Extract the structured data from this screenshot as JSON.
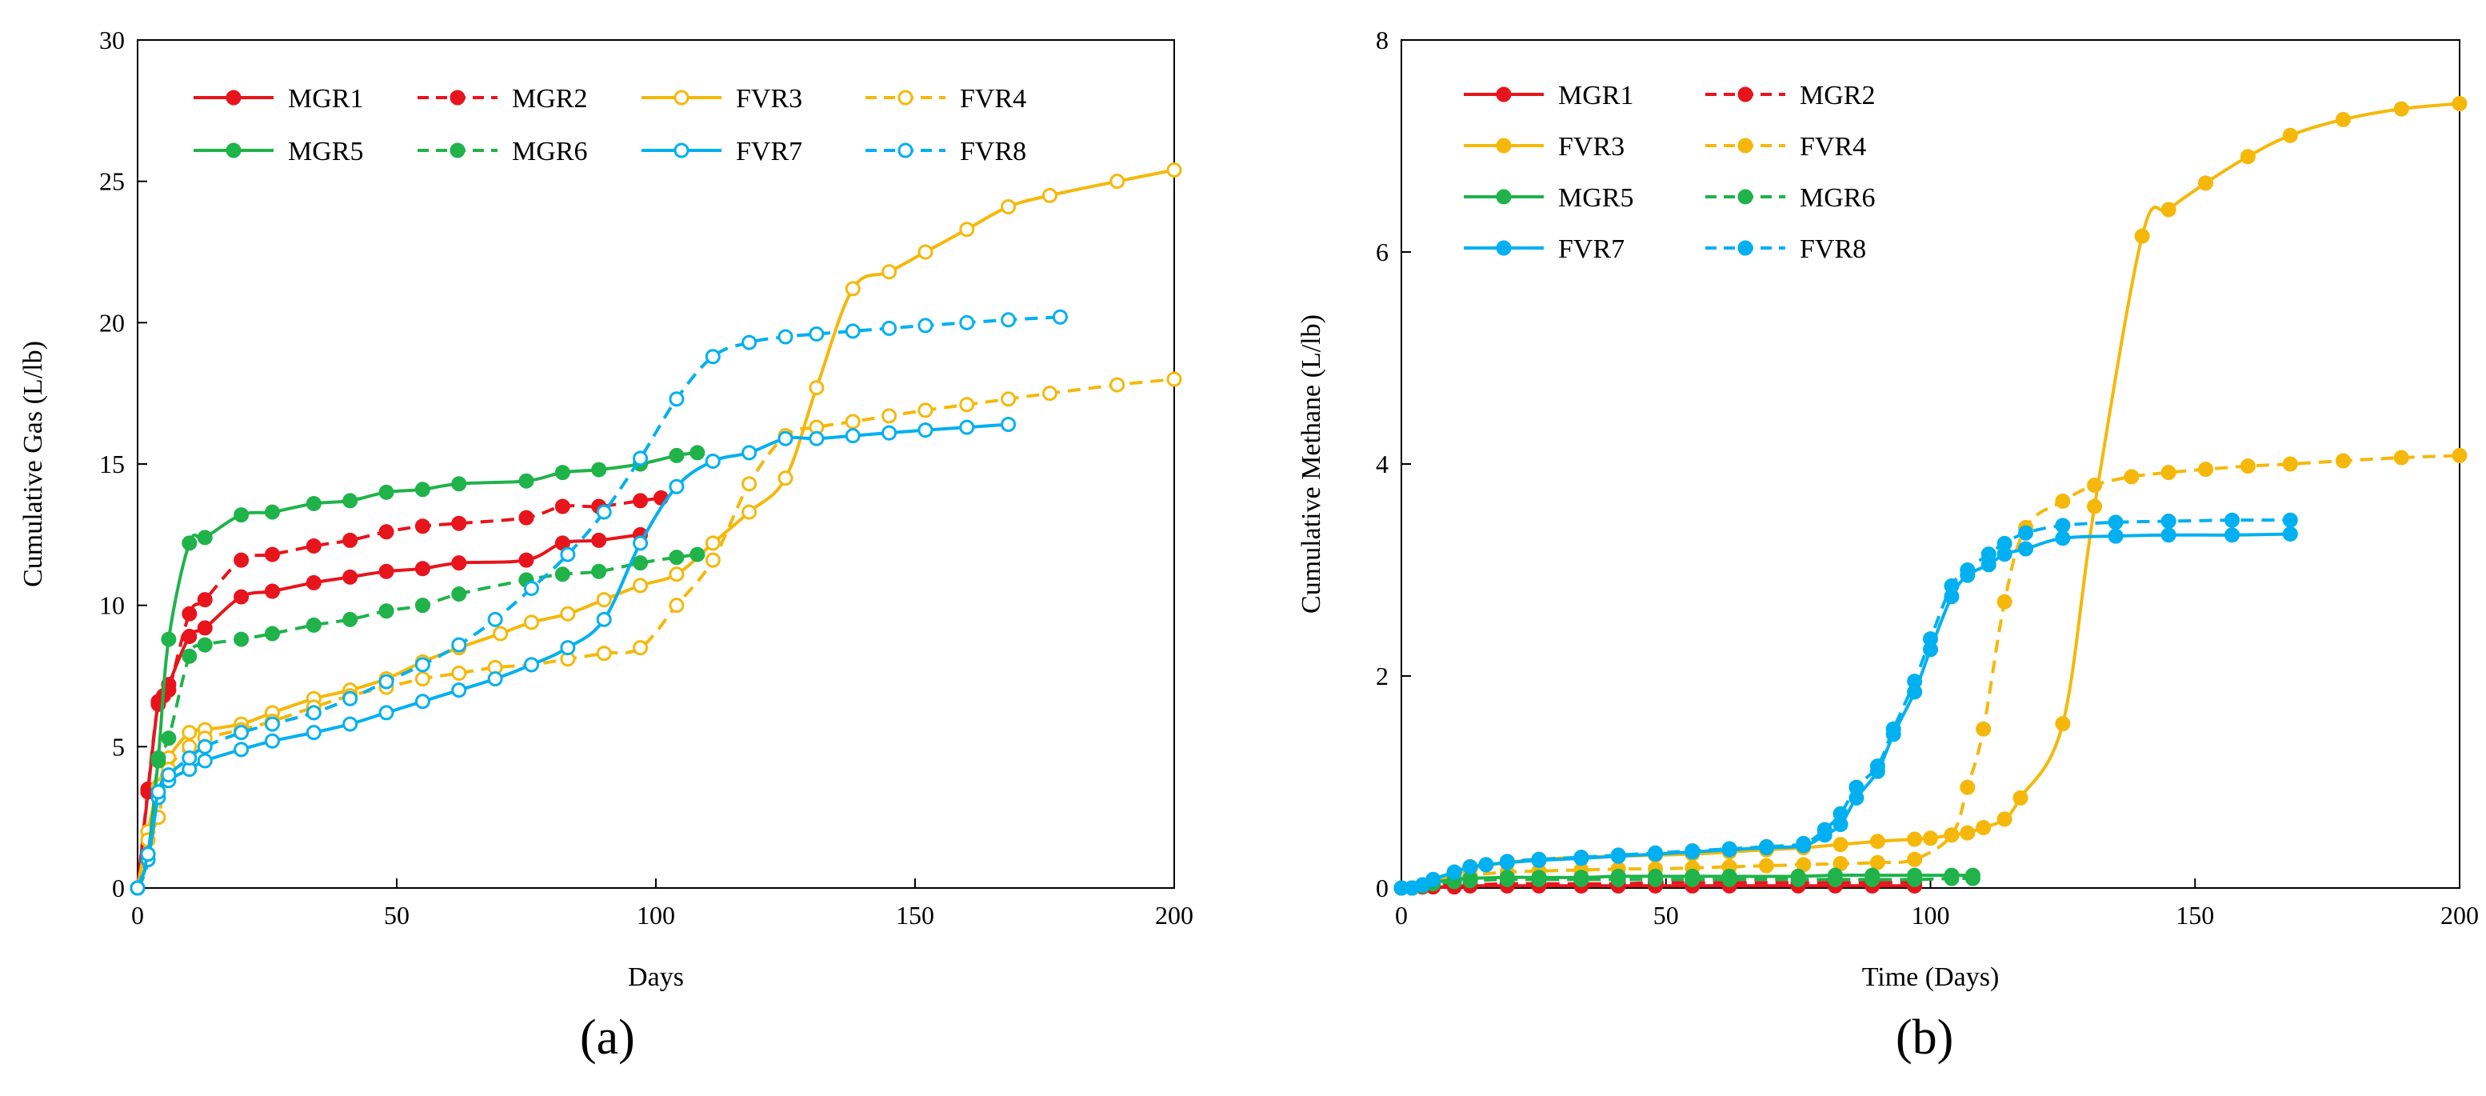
{
  "chart_data": [
    {
      "type": "line",
      "panel": "a",
      "caption": "(a)",
      "xlabel": "Days",
      "ylabel": "Cumulative Gas (L/lb)",
      "xlim": [
        0,
        200
      ],
      "ylim": [
        0,
        30
      ],
      "xticks": [
        0,
        50,
        100,
        150,
        200
      ],
      "yticks": [
        0,
        5,
        10,
        15,
        20,
        25,
        30
      ],
      "legend": {
        "columns": 4,
        "placement": "top-left"
      },
      "series": [
        {
          "name": "MGR1",
          "color": "#e8141c",
          "dashed": false,
          "marker": "filled",
          "x": [
            0,
            2,
            4,
            5,
            6,
            10,
            13,
            20,
            26,
            34,
            41,
            48,
            55,
            62,
            75,
            82,
            89,
            97
          ],
          "y": [
            0,
            3.4,
            6.6,
            6.8,
            7.2,
            8.9,
            9.2,
            10.3,
            10.5,
            10.8,
            11.0,
            11.2,
            11.3,
            11.5,
            11.6,
            12.2,
            12.3,
            12.5
          ]
        },
        {
          "name": "MGR2",
          "color": "#e8141c",
          "dashed": true,
          "marker": "filled",
          "x": [
            0,
            2,
            4,
            6,
            10,
            13,
            20,
            26,
            34,
            41,
            48,
            55,
            62,
            75,
            82,
            89,
            97,
            101
          ],
          "y": [
            0,
            3.5,
            6.5,
            7.0,
            9.7,
            10.2,
            11.6,
            11.8,
            12.1,
            12.3,
            12.6,
            12.8,
            12.9,
            13.1,
            13.5,
            13.5,
            13.7,
            13.8
          ]
        },
        {
          "name": "FVR3",
          "color": "#f5b80a",
          "dashed": false,
          "marker": "open",
          "x": [
            0,
            2,
            4,
            6,
            10,
            13,
            20,
            26,
            34,
            41,
            48,
            55,
            62,
            70,
            76,
            83,
            90,
            97,
            104,
            111,
            118,
            125,
            131,
            138,
            145,
            152,
            160,
            168,
            176,
            189,
            200
          ],
          "y": [
            0,
            2.0,
            3.6,
            4.6,
            5.5,
            5.6,
            5.8,
            6.2,
            6.7,
            7.0,
            7.4,
            8.0,
            8.5,
            9.0,
            9.4,
            9.7,
            10.2,
            10.7,
            11.1,
            12.2,
            13.3,
            14.5,
            17.7,
            21.2,
            21.8,
            22.5,
            23.3,
            24.1,
            24.5,
            25.0,
            25.4
          ]
        },
        {
          "name": "FVR4",
          "color": "#f5b80a",
          "dashed": true,
          "marker": "open",
          "x": [
            0,
            2,
            4,
            6,
            10,
            13,
            20,
            26,
            34,
            41,
            48,
            55,
            62,
            69,
            76,
            83,
            90,
            97,
            104,
            111,
            118,
            125,
            131,
            138,
            145,
            152,
            160,
            168,
            176,
            189,
            200
          ],
          "y": [
            0,
            1.7,
            2.5,
            4.2,
            5.0,
            5.3,
            5.6,
            5.9,
            6.4,
            6.8,
            7.1,
            7.4,
            7.6,
            7.8,
            7.9,
            8.1,
            8.3,
            8.5,
            10.0,
            11.6,
            14.3,
            16.0,
            16.3,
            16.5,
            16.7,
            16.9,
            17.1,
            17.3,
            17.5,
            17.8,
            18.0
          ]
        },
        {
          "name": "MGR5",
          "color": "#1fb34a",
          "dashed": false,
          "marker": "filled",
          "x": [
            0,
            2,
            4,
            6,
            10,
            13,
            20,
            26,
            34,
            41,
            48,
            55,
            62,
            75,
            82,
            89,
            97,
            104,
            108
          ],
          "y": [
            0,
            1.2,
            4.6,
            8.8,
            12.2,
            12.4,
            13.2,
            13.3,
            13.6,
            13.7,
            14.0,
            14.1,
            14.3,
            14.4,
            14.7,
            14.8,
            15.0,
            15.3,
            15.4
          ]
        },
        {
          "name": "MGR6",
          "color": "#1fb34a",
          "dashed": true,
          "marker": "filled",
          "x": [
            0,
            2,
            4,
            6,
            10,
            13,
            20,
            26,
            34,
            41,
            48,
            55,
            62,
            75,
            82,
            89,
            97,
            104,
            108
          ],
          "y": [
            0,
            1.0,
            4.5,
            5.3,
            8.2,
            8.6,
            8.8,
            9.0,
            9.3,
            9.5,
            9.8,
            10.0,
            10.4,
            10.9,
            11.1,
            11.2,
            11.5,
            11.7,
            11.8
          ]
        },
        {
          "name": "FVR7",
          "color": "#00b0f0",
          "dashed": false,
          "marker": "open",
          "x": [
            0,
            2,
            4,
            6,
            10,
            13,
            20,
            26,
            34,
            41,
            48,
            55,
            62,
            69,
            76,
            83,
            90,
            97,
            104,
            111,
            118,
            125,
            131,
            138,
            145,
            152,
            160,
            168
          ],
          "y": [
            0,
            1.0,
            3.2,
            3.8,
            4.2,
            4.5,
            4.9,
            5.2,
            5.5,
            5.8,
            6.2,
            6.6,
            7.0,
            7.4,
            7.9,
            8.5,
            9.5,
            12.2,
            14.2,
            15.1,
            15.4,
            15.9,
            15.9,
            16.0,
            16.1,
            16.2,
            16.3,
            16.4
          ]
        },
        {
          "name": "FVR8",
          "color": "#00b0f0",
          "dashed": true,
          "marker": "open",
          "x": [
            0,
            2,
            4,
            6,
            10,
            13,
            20,
            26,
            34,
            41,
            48,
            55,
            62,
            69,
            76,
            83,
            90,
            97,
            104,
            111,
            118,
            125,
            131,
            138,
            145,
            152,
            160,
            168,
            178
          ],
          "y": [
            0,
            1.2,
            3.4,
            4.0,
            4.6,
            5.0,
            5.5,
            5.8,
            6.2,
            6.7,
            7.3,
            7.9,
            8.6,
            9.5,
            10.6,
            11.8,
            13.3,
            15.2,
            17.3,
            18.8,
            19.3,
            19.5,
            19.6,
            19.7,
            19.8,
            19.9,
            20.0,
            20.1,
            20.2
          ]
        }
      ]
    },
    {
      "type": "line",
      "panel": "b",
      "caption": "(b)",
      "xlabel": "Time (Days)",
      "ylabel": "Cumulative Methane (L/lb)",
      "xlim": [
        0,
        200
      ],
      "ylim": [
        0,
        8
      ],
      "xticks": [
        0,
        50,
        100,
        150,
        200
      ],
      "yticks": [
        0,
        2,
        4,
        6,
        8
      ],
      "legend": {
        "columns": 2,
        "placement": "top-left"
      },
      "series": [
        {
          "name": "MGR1",
          "color": "#e8141c",
          "dashed": false,
          "marker": "filled",
          "x": [
            0,
            2,
            4,
            6,
            10,
            13,
            20,
            26,
            34,
            41,
            48,
            55,
            62,
            75,
            82,
            89,
            97
          ],
          "y": [
            0,
            0.0,
            0.01,
            0.01,
            0.01,
            0.02,
            0.02,
            0.02,
            0.02,
            0.02,
            0.02,
            0.02,
            0.02,
            0.02,
            0.02,
            0.02,
            0.02
          ]
        },
        {
          "name": "MGR2",
          "color": "#e8141c",
          "dashed": true,
          "marker": "filled",
          "x": [
            0,
            2,
            4,
            6,
            10,
            13,
            20,
            26,
            34,
            41,
            48,
            55,
            62,
            75,
            82,
            89,
            97
          ],
          "y": [
            0,
            0.0,
            0.01,
            0.02,
            0.03,
            0.03,
            0.04,
            0.04,
            0.04,
            0.04,
            0.05,
            0.05,
            0.05,
            0.05,
            0.05,
            0.05,
            0.05
          ]
        },
        {
          "name": "FVR3",
          "color": "#f5b80a",
          "dashed": false,
          "marker": "filled",
          "x": [
            0,
            2,
            4,
            6,
            10,
            13,
            20,
            26,
            34,
            41,
            48,
            55,
            62,
            69,
            76,
            83,
            90,
            97,
            100,
            104,
            107,
            110,
            114,
            117,
            125,
            131,
            140,
            145,
            152,
            160,
            168,
            178,
            189,
            200
          ],
          "y": [
            0,
            0.0,
            0.02,
            0.05,
            0.12,
            0.18,
            0.24,
            0.27,
            0.29,
            0.3,
            0.31,
            0.32,
            0.34,
            0.36,
            0.38,
            0.41,
            0.44,
            0.46,
            0.47,
            0.5,
            0.52,
            0.57,
            0.65,
            0.85,
            1.55,
            3.6,
            6.15,
            6.4,
            6.65,
            6.9,
            7.1,
            7.25,
            7.35,
            7.4
          ]
        },
        {
          "name": "FVR4",
          "color": "#f5b80a",
          "dashed": true,
          "marker": "filled",
          "x": [
            0,
            2,
            4,
            6,
            10,
            13,
            20,
            26,
            34,
            41,
            48,
            55,
            62,
            69,
            76,
            83,
            90,
            97,
            104,
            107,
            110,
            114,
            118,
            125,
            131,
            138,
            145,
            152,
            160,
            168,
            178,
            189,
            200
          ],
          "y": [
            0,
            0.0,
            0.02,
            0.04,
            0.09,
            0.12,
            0.15,
            0.16,
            0.17,
            0.18,
            0.18,
            0.19,
            0.2,
            0.21,
            0.22,
            0.23,
            0.24,
            0.27,
            0.5,
            0.95,
            1.5,
            2.7,
            3.4,
            3.65,
            3.8,
            3.88,
            3.92,
            3.95,
            3.98,
            4.0,
            4.03,
            4.06,
            4.08
          ]
        },
        {
          "name": "MGR5",
          "color": "#1fb34a",
          "dashed": false,
          "marker": "filled",
          "x": [
            0,
            2,
            4,
            6,
            10,
            13,
            20,
            26,
            34,
            41,
            48,
            55,
            62,
            75,
            82,
            89,
            97,
            104,
            108
          ],
          "y": [
            0,
            0.0,
            0.02,
            0.05,
            0.08,
            0.09,
            0.1,
            0.1,
            0.1,
            0.11,
            0.11,
            0.11,
            0.11,
            0.11,
            0.12,
            0.12,
            0.12,
            0.12,
            0.12
          ]
        },
        {
          "name": "MGR6",
          "color": "#1fb34a",
          "dashed": true,
          "marker": "filled",
          "x": [
            0,
            2,
            4,
            6,
            10,
            13,
            20,
            26,
            34,
            41,
            48,
            55,
            62,
            75,
            82,
            89,
            97,
            104,
            108
          ],
          "y": [
            0,
            0.0,
            0.02,
            0.04,
            0.06,
            0.07,
            0.08,
            0.08,
            0.08,
            0.08,
            0.08,
            0.08,
            0.08,
            0.08,
            0.08,
            0.08,
            0.08,
            0.09,
            0.09
          ]
        },
        {
          "name": "FVR7",
          "color": "#00b0f0",
          "dashed": false,
          "marker": "filled",
          "x": [
            0,
            2,
            4,
            6,
            10,
            13,
            16,
            20,
            26,
            34,
            41,
            48,
            55,
            62,
            69,
            76,
            80,
            83,
            86,
            90,
            93,
            97,
            100,
            104,
            107,
            111,
            114,
            118,
            125,
            135,
            145,
            157,
            168
          ],
          "y": [
            0,
            0.0,
            0.03,
            0.08,
            0.15,
            0.2,
            0.22,
            0.24,
            0.26,
            0.28,
            0.3,
            0.32,
            0.34,
            0.36,
            0.38,
            0.4,
            0.5,
            0.6,
            0.85,
            1.1,
            1.45,
            1.85,
            2.25,
            2.75,
            2.95,
            3.05,
            3.15,
            3.2,
            3.3,
            3.32,
            3.33,
            3.33,
            3.34
          ]
        },
        {
          "name": "FVR8",
          "color": "#00b0f0",
          "dashed": true,
          "marker": "filled",
          "x": [
            0,
            2,
            4,
            6,
            10,
            13,
            16,
            20,
            26,
            34,
            41,
            48,
            55,
            62,
            69,
            76,
            80,
            83,
            86,
            90,
            93,
            97,
            100,
            104,
            107,
            111,
            114,
            118,
            125,
            135,
            145,
            157,
            168
          ],
          "y": [
            0,
            0.0,
            0.03,
            0.08,
            0.15,
            0.2,
            0.22,
            0.25,
            0.27,
            0.29,
            0.31,
            0.33,
            0.35,
            0.37,
            0.39,
            0.42,
            0.55,
            0.7,
            0.95,
            1.15,
            1.5,
            1.95,
            2.35,
            2.85,
            3.0,
            3.15,
            3.25,
            3.35,
            3.42,
            3.45,
            3.46,
            3.47,
            3.47
          ]
        }
      ]
    }
  ]
}
